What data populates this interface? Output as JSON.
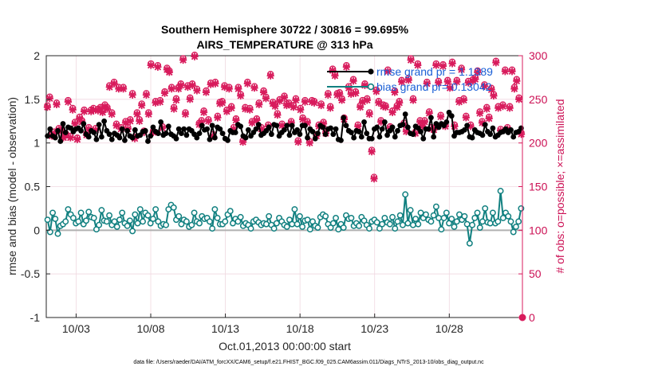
{
  "chart_data": {
    "type": "line",
    "title": [
      "Southern Hemisphere 30722 / 30816 = 99.695%",
      "AIRS_TEMPERATURE @ 313 hPa"
    ],
    "xlabel": "Oct.01,2013 00:00:00 start",
    "ylabel": "rmse and bias (model - observation)",
    "ylabel_right": "# of obs: o=possible; ×=assimilated",
    "x_tick_labels": [
      "10/03",
      "10/08",
      "10/13",
      "10/18",
      "10/23",
      "10/28"
    ],
    "x_tick_days": [
      3,
      8,
      13,
      18,
      23,
      28
    ],
    "xlim": [
      1,
      32.9
    ],
    "ylim": [
      -1,
      2
    ],
    "y_ticks": [
      -1,
      -0.5,
      0,
      0.5,
      1,
      1.5,
      2
    ],
    "y_tick_labels": [
      "-1",
      "-0.5",
      "0",
      "0.5",
      "1",
      "1.5",
      "2"
    ],
    "ylim_right": [
      0,
      300
    ],
    "y_ticks_right": [
      0,
      50,
      100,
      150,
      200,
      250,
      300
    ],
    "y_tick_labels_right": [
      "0",
      "50",
      "100",
      "150",
      "200",
      "250",
      "300"
    ],
    "grid": true,
    "legend_position": "top-right",
    "zero_line": 0,
    "colors": {
      "rmse": "#000000",
      "bias": "#118080",
      "obs": "#d81b5c",
      "grid": "#f0d8e0",
      "zero": "#b0b0b0",
      "legend_text": "#1a5fd6"
    },
    "series": [
      {
        "name": "rmse grand pr = 1.1389",
        "axis": "left",
        "marker": "filled-circle",
        "values": [
          1.08,
          1.16,
          1.08,
          1.06,
          1.14,
          1.02,
          1.22,
          1.12,
          1.18,
          1.17,
          1.13,
          1.16,
          1.17,
          1.14,
          1.22,
          1.1,
          1.07,
          1.14,
          1.12,
          1.04,
          1.21,
          1.07,
          1.25,
          1.14,
          1.1,
          1.04,
          1.11,
          1.09,
          1.06,
          1.16,
          1.03,
          1.14,
          1.08,
          1.06,
          1.15,
          1.08,
          1.09,
          1.13,
          1.14,
          1.02,
          1.08,
          1.18,
          1.13,
          1.11,
          1.24,
          1.09,
          1.11,
          1.19,
          1.1,
          1.08,
          1.05,
          1.16,
          1.11,
          1.16,
          1.09,
          1.16,
          1.14,
          1.1,
          1.06,
          1.11,
          1.2,
          1.15,
          1.16,
          1.04,
          1.2,
          1.06,
          1.18,
          1.16,
          1.11,
          1.05,
          1.03,
          1.14,
          1.12,
          1.12,
          1.21,
          1.19,
          1.08,
          1.06,
          1.15,
          1.08,
          1.12,
          1.16,
          1.21,
          1.09,
          1.11,
          1.14,
          1.18,
          1.1,
          1.21,
          1.2,
          1.08,
          1.12,
          1.15,
          1.2,
          1.09,
          1.2,
          1.12,
          1.15,
          1.1,
          1.2,
          1.2,
          1.06,
          1.16,
          1.13,
          1.05,
          1.11,
          1.2,
          1.18,
          1.1,
          1.16,
          1.17,
          1.1,
          1.16,
          1.04,
          1.03,
          1.29,
          1.2,
          1.14,
          1.12,
          1.06,
          1.14,
          1.13,
          1.07,
          1.24,
          1.11,
          1.05,
          1.05,
          1.16,
          1.18,
          1.07,
          1.16,
          1.24,
          1.09,
          1.14,
          1.18,
          1.07,
          1.14,
          1.2,
          1.21,
          1.33,
          1.18,
          1.11,
          1.1,
          1.19,
          1.17,
          1.13,
          1.05,
          1.16,
          1.16,
          1.29,
          1.07,
          1.22,
          1.18,
          1.22,
          1.2,
          1.24,
          1.35,
          1.31,
          1.08,
          1.12,
          1.12,
          1.13,
          1.15,
          1.2,
          1.07,
          1.06,
          1.15,
          1.12,
          1.11,
          1.09,
          1.21,
          1.13,
          1.1,
          1.17,
          1.07,
          1.09,
          1.12,
          1.13,
          1.16,
          1.12,
          1.15,
          1.07,
          1.12,
          1.13,
          1.17
        ]
      },
      {
        "name": "bias grand pr= 0.13042",
        "axis": "left",
        "marker": "open-circle",
        "values": [
          0.12,
          -0.02,
          0.2,
          0.13,
          -0.04,
          0.05,
          0.07,
          0.1,
          0.24,
          0.18,
          0.14,
          0.08,
          0.1,
          0.2,
          0.07,
          0.11,
          0.21,
          0.15,
          0.14,
          0.01,
          0.06,
          0.23,
          0.11,
          0.1,
          0.17,
          0.06,
          0.1,
          0.04,
          0.12,
          0.2,
          0.08,
          0.05,
          0.11,
          -0.01,
          0.18,
          0.08,
          0.24,
          0.1,
          0.2,
          0.17,
          0.08,
          0.13,
          0.24,
          0.1,
          0.05,
          0.07,
          0.06,
          0.24,
          0.29,
          0.26,
          0.12,
          0.16,
          0.07,
          0.12,
          0.1,
          0.04,
          0.06,
          0.2,
          0.1,
          0.08,
          0.16,
          0.13,
          0.14,
          0.1,
          0.02,
          0.24,
          0.14,
          0.07,
          0.07,
          0.1,
          0.18,
          0.22,
          0.08,
          0.13,
          0.1,
          0.15,
          0.05,
          0.08,
          0.06,
          0.02,
          0.1,
          0.12,
          0.09,
          0.06,
          0.08,
          0.07,
          0.16,
          0.06,
          0.02,
          0.08,
          0.14,
          0.1,
          0.06,
          0.04,
          0.12,
          0.07,
          0.24,
          0.07,
          0.16,
          0.04,
          0.11,
          0.12,
          0.01,
          0.1,
          0.05,
          0.03,
          0.15,
          0.18,
          0.16,
          0.07,
          0.03,
          0.08,
          0.14,
          0.01,
          0.07,
          0.03,
          0.17,
          0.13,
          0.14,
          0.05,
          0.08,
          0.05,
          0.15,
          0.11,
          0.06,
          0.02,
          0.1,
          0.12,
          0.09,
          0.02,
          0.07,
          0.14,
          0.09,
          0.07,
          0.15,
          0.02,
          0.1,
          0.17,
          0.06,
          0.41,
          0.08,
          0.23,
          0.06,
          0.13,
          0.07,
          0.2,
          0.14,
          0.18,
          0.12,
          0.1,
          0.17,
          0.27,
          0.14,
          0.01,
          0.14,
          0.2,
          0.08,
          0.13,
          0.04,
          0.1,
          0.18,
          0.12,
          0.16,
          0.07,
          -0.15,
          0.06,
          0.14,
          0.2,
          0.03,
          0.1,
          0.25,
          0.09,
          0.08,
          0.2,
          0.08,
          0.1,
          0.45,
          0.14,
          0.2,
          0.16,
          0.1,
          -0.02,
          0.04,
          0.1,
          0.25
        ]
      },
      {
        "name": "possible",
        "axis": "right",
        "marker": "open-circle",
        "values": [
          241,
          251,
          208,
          211,
          244,
          215,
          213,
          206,
          209,
          247,
          206,
          238,
          222,
          204,
          228,
          224,
          236,
          209,
          216,
          236,
          238,
          215,
          237,
          239,
          235,
          242,
          239,
          264,
          233,
          268,
          220,
          262,
          216,
          262,
          223,
          216,
          225,
          255,
          205,
          233,
          225,
          243,
          212,
          255,
          233,
          289,
          212,
          246,
          287,
          247,
          217,
          257,
          284,
          281,
          262,
          239,
          249,
          262,
          266,
          295,
          233,
          264,
          250,
          266,
          299,
          260,
          221,
          224,
          235,
          258,
          225,
          267,
          208,
          268,
          229,
          245,
          246,
          264,
          236,
          262,
          240,
          216,
          226,
          262,
          254,
          201,
          239,
          268,
          238,
          223,
          263,
          226,
          244,
          216,
          258,
          251,
          219,
          277,
          245,
          242,
          232,
          248,
          220,
          252,
          243,
          244,
          223,
          241,
          249,
          201,
          238,
          227,
          247,
          223,
          200,
          247,
          246,
          208,
          219,
          243,
          222,
          211,
          255,
          240,
          283,
          277,
          255,
          256,
          249,
          227,
          287,
          263,
          256,
          271,
          257,
          219,
          241,
          247,
          266,
          249,
          233,
          190,
          159,
          259,
          246,
          224,
          242,
          241,
          282,
          217,
          235,
          258,
          241,
          246,
          270,
          221,
          213,
          272,
          295,
          249,
          211,
          289,
          224,
          219,
          224,
          268,
          234,
          216,
          215,
          289,
          269,
          230,
          288,
          219,
          270,
          263,
          291,
          219,
          270,
          247,
          284,
          249,
          229,
          269,
          219,
          271,
          273,
          281,
          234,
          223,
          265,
          239,
          228,
          261,
          254,
          292,
          240,
          214,
          242,
          282,
          216,
          240,
          282,
          262,
          271,
          250,
          210
        ]
      },
      {
        "name": "assimilated",
        "axis": "right",
        "marker": "x",
        "values": [
          241,
          251,
          208,
          211,
          244,
          215,
          213,
          206,
          209,
          247,
          206,
          238,
          222,
          204,
          228,
          224,
          236,
          209,
          216,
          236,
          238,
          215,
          237,
          239,
          235,
          242,
          239,
          264,
          233,
          268,
          220,
          262,
          216,
          262,
          223,
          216,
          225,
          255,
          205,
          233,
          225,
          243,
          212,
          255,
          233,
          289,
          212,
          246,
          287,
          247,
          217,
          257,
          284,
          281,
          262,
          239,
          249,
          262,
          266,
          295,
          233,
          264,
          250,
          266,
          299,
          260,
          221,
          224,
          235,
          258,
          225,
          267,
          208,
          268,
          229,
          245,
          246,
          264,
          236,
          262,
          240,
          216,
          226,
          262,
          254,
          201,
          239,
          268,
          238,
          223,
          263,
          226,
          244,
          216,
          258,
          251,
          219,
          277,
          245,
          242,
          232,
          248,
          220,
          252,
          243,
          244,
          223,
          241,
          249,
          201,
          238,
          227,
          247,
          223,
          200,
          247,
          246,
          208,
          219,
          243,
          222,
          211,
          255,
          240,
          283,
          277,
          255,
          256,
          249,
          227,
          287,
          263,
          256,
          271,
          257,
          219,
          241,
          247,
          266,
          249,
          233,
          190,
          159,
          259,
          246,
          224,
          242,
          241,
          282,
          217,
          235,
          258,
          241,
          246,
          270,
          221,
          213,
          272,
          295,
          249,
          211,
          289,
          224,
          219,
          224,
          268,
          234,
          216,
          215,
          289,
          269,
          230,
          288,
          219,
          270,
          263,
          291,
          219,
          270,
          247,
          284,
          249,
          229,
          269,
          219,
          271,
          273,
          281,
          234,
          223,
          265,
          239,
          228,
          261,
          254,
          292,
          240,
          214,
          242,
          282,
          216,
          240,
          282,
          262,
          271,
          250,
          210
        ]
      }
    ],
    "footnote": "data file: /Users/raeder/DAI/ATM_forcXX/CAM6_setup/f.e21.FHIST_BGC.f09_025.CAM6assim.011/Diags_NTrS_2013-10/obs_diag_output.nc"
  }
}
